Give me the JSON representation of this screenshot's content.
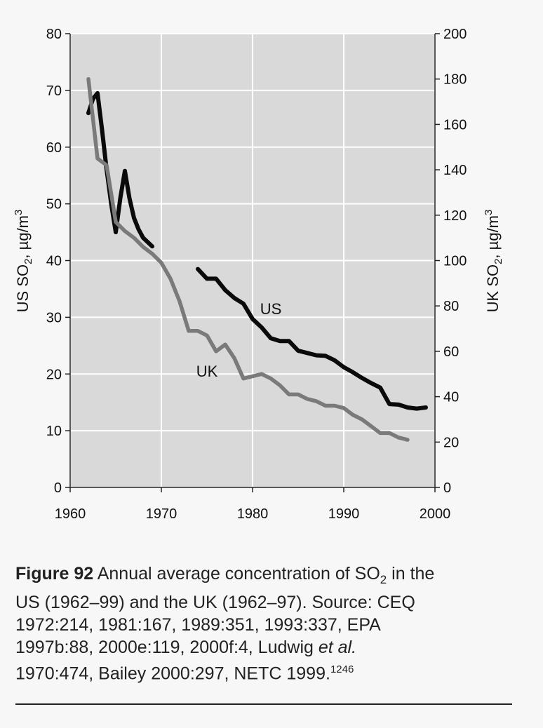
{
  "chart_data": {
    "type": "line",
    "title": "",
    "xlabel": "",
    "ylabel_left": "US SO2, µg/m3",
    "ylabel_right": "UK SO2, µg/m3",
    "xlim": [
      1960,
      2000
    ],
    "ylim_left": [
      0,
      80
    ],
    "ylim_right": [
      0,
      200
    ],
    "x_ticks": [
      1960,
      1970,
      1980,
      1990,
      2000
    ],
    "y_ticks_left": [
      0,
      10,
      20,
      30,
      40,
      50,
      60,
      70,
      80
    ],
    "y_ticks_right": [
      0,
      20,
      40,
      60,
      80,
      100,
      120,
      140,
      160,
      180,
      200
    ],
    "grid": true,
    "series": [
      {
        "name": "US",
        "axis": "left",
        "color": "#0a0a0a",
        "segments": [
          {
            "x": [
              1962,
              1962.5,
              1963,
              1963.5,
              1964,
              1964.5,
              1965,
              1965.5,
              1966,
              1966.5,
              1967,
              1967.5,
              1968,
              1969
            ],
            "y": [
              66,
              68.5,
              69.5,
              63,
              56,
              50,
              45,
              51,
              55.8,
              51,
              47.5,
              45.5,
              44,
              42.5
            ]
          },
          {
            "x": [
              1974,
              1975,
              1976,
              1977,
              1978,
              1979,
              1980,
              1981,
              1982,
              1983,
              1984,
              1985,
              1986,
              1987,
              1988,
              1989,
              1990,
              1991,
              1992,
              1993,
              1994,
              1995,
              1996,
              1997,
              1998,
              1999
            ],
            "y": [
              38.5,
              36.8,
              36.8,
              34.8,
              33.4,
              32.4,
              29.7,
              28.2,
              26.3,
              25.8,
              25.8,
              24.1,
              23.7,
              23.3,
              23.2,
              22.4,
              21.2,
              20.3,
              19.3,
              18.4,
              17.6,
              14.7,
              14.6,
              14.1,
              13.9,
              14.1
            ]
          }
        ]
      },
      {
        "name": "UK",
        "axis": "right",
        "color": "#7a7a7a",
        "segments": [
          {
            "x": [
              1962,
              1963,
              1964,
              1965,
              1966,
              1967,
              1968,
              1969,
              1970,
              1971,
              1972,
              1973,
              1974,
              1975,
              1976,
              1977,
              1978,
              1979,
              1980,
              1981,
              1982,
              1983,
              1984,
              1985,
              1986,
              1987,
              1988,
              1989,
              1990,
              1991,
              1992,
              1993,
              1994,
              1995,
              1996,
              1997
            ],
            "y": [
              180,
              145,
              142,
              117,
              113,
              110,
              106,
              103,
              99,
              92,
              82,
              69,
              69,
              67,
              60,
              63,
              57,
              48,
              49,
              50,
              48,
              45,
              41,
              41,
              39,
              38,
              36,
              36,
              35,
              32,
              30,
              27,
              24,
              24,
              22,
              21
            ]
          }
        ]
      }
    ],
    "annotations": [
      {
        "text": "US",
        "x": 1982,
        "y": 31.5,
        "axis": "left"
      },
      {
        "text": "UK",
        "x": 1975,
        "y": 20.5,
        "axis": "left"
      }
    ]
  },
  "caption": {
    "figure_label": "Figure 92",
    "line1": " Annual average concentration of SO",
    "line1_sub": "2",
    "line1_end": " in the",
    "line2": "US (1962–99) and the UK (1962–97). Source: CEQ",
    "line3": "1972:214, 1981:167, 1989:351, 1993:337, EPA",
    "line4_a": "1997b:88, 2000e:119, 2000f:4, Ludwig ",
    "line4_em": "et al.",
    "line5": "1970:474, Bailey 2000:297, NETC 1999.",
    "line5_sup": "1246"
  }
}
